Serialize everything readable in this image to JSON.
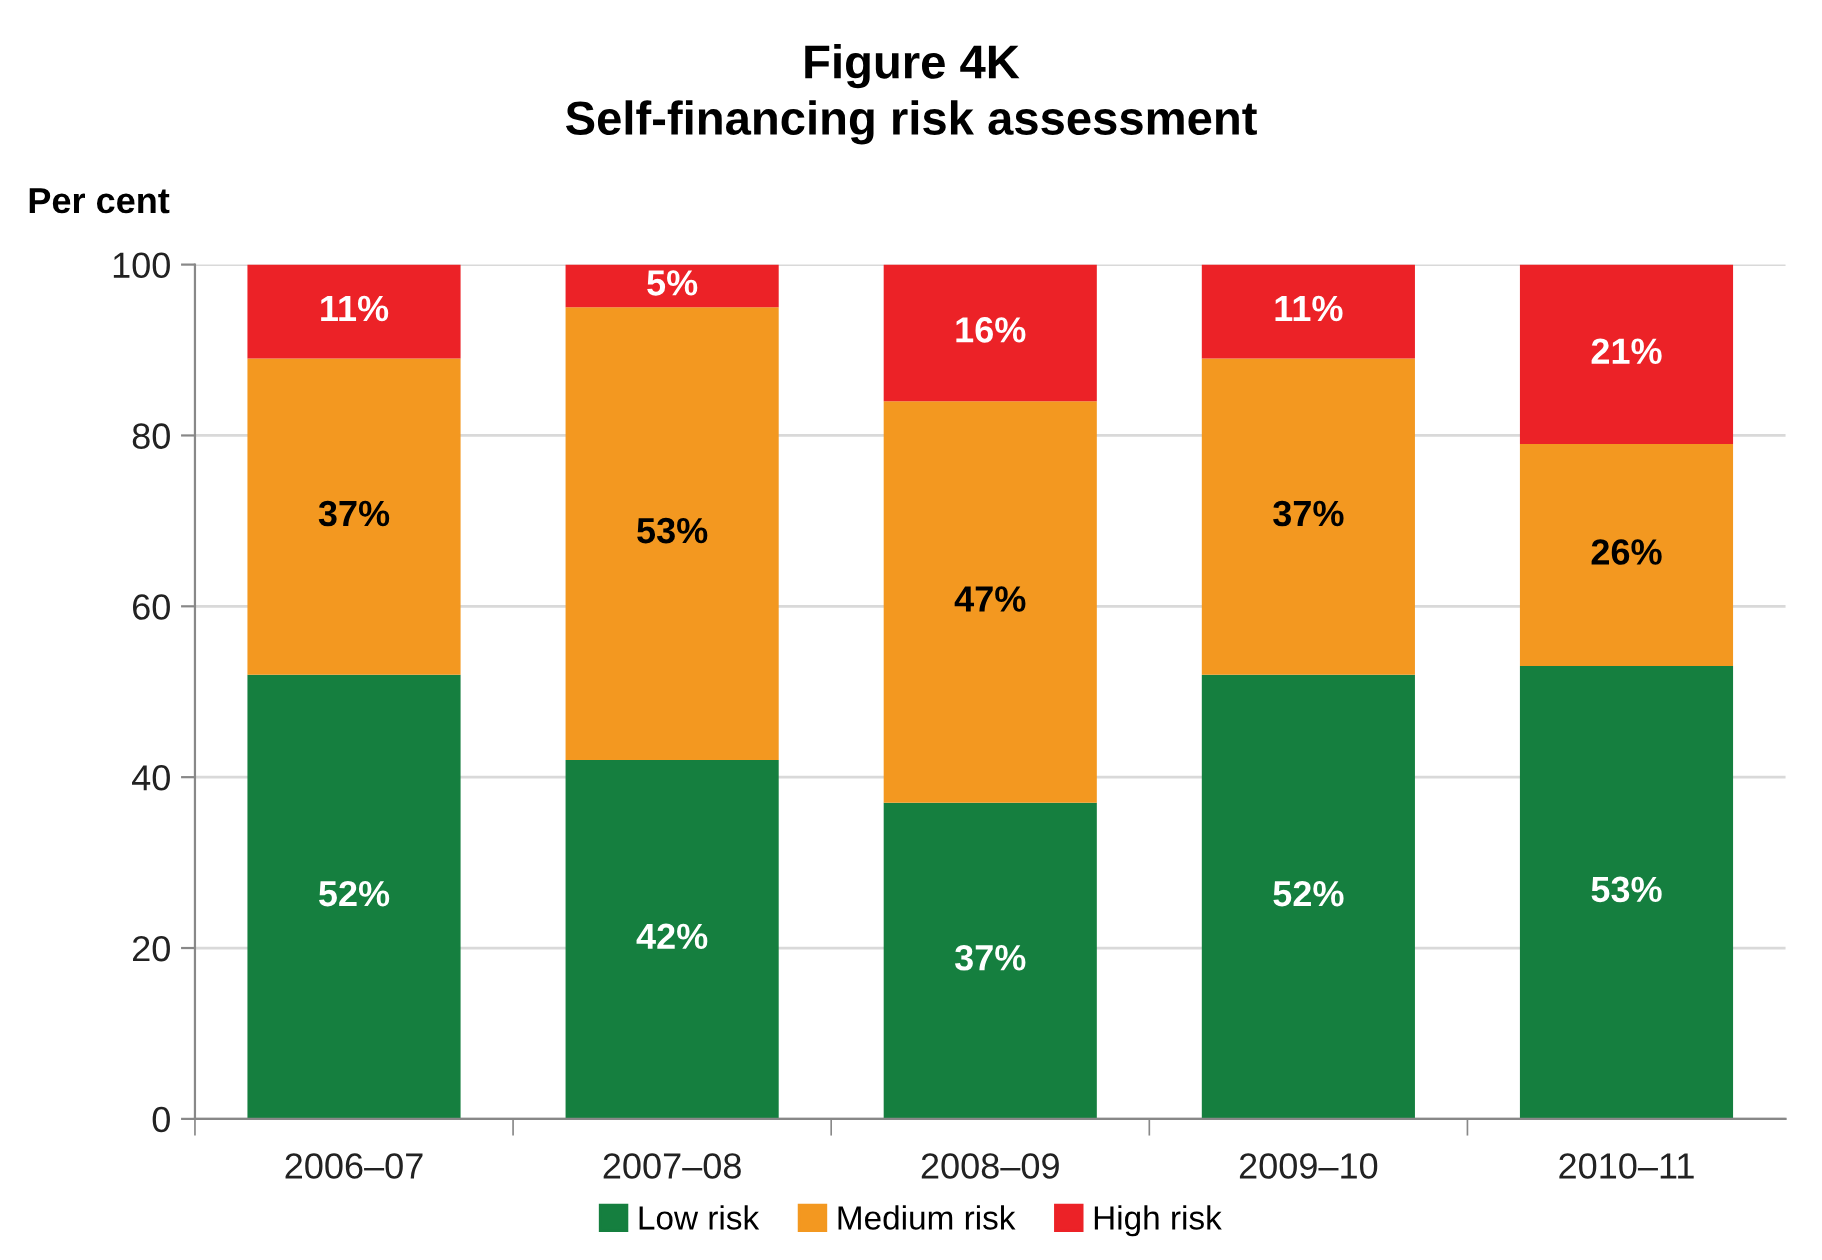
{
  "chart_data": {
    "type": "bar",
    "title": "Figure 4K\nSelf-financing risk assessment",
    "ylabel": "Per cent",
    "categories": [
      "2006–07",
      "2007–08",
      "2008–09",
      "2009–10",
      "2010–11"
    ],
    "stacked": true,
    "series": [
      {
        "name": "Low risk",
        "color": "#157f3f",
        "values": [
          52,
          42,
          37,
          52,
          53
        ],
        "value_labels": [
          "52%",
          "42%",
          "37%",
          "52%",
          "53%"
        ]
      },
      {
        "name": "Medium risk",
        "color": "#f39820",
        "values": [
          37,
          53,
          47,
          37,
          26
        ],
        "value_labels": [
          "37%",
          "53%",
          "47%",
          "37%",
          "26%"
        ]
      },
      {
        "name": "High risk",
        "color": "#ec2227",
        "values": [
          11,
          5,
          16,
          11,
          21
        ],
        "value_labels": [
          "11%",
          "5%",
          "16%",
          "11%",
          "21%"
        ]
      }
    ],
    "ylim": [
      0,
      100
    ],
    "yticks": [
      0,
      20,
      40,
      60,
      80,
      100
    ],
    "grid": "y",
    "legend": "bottom"
  }
}
